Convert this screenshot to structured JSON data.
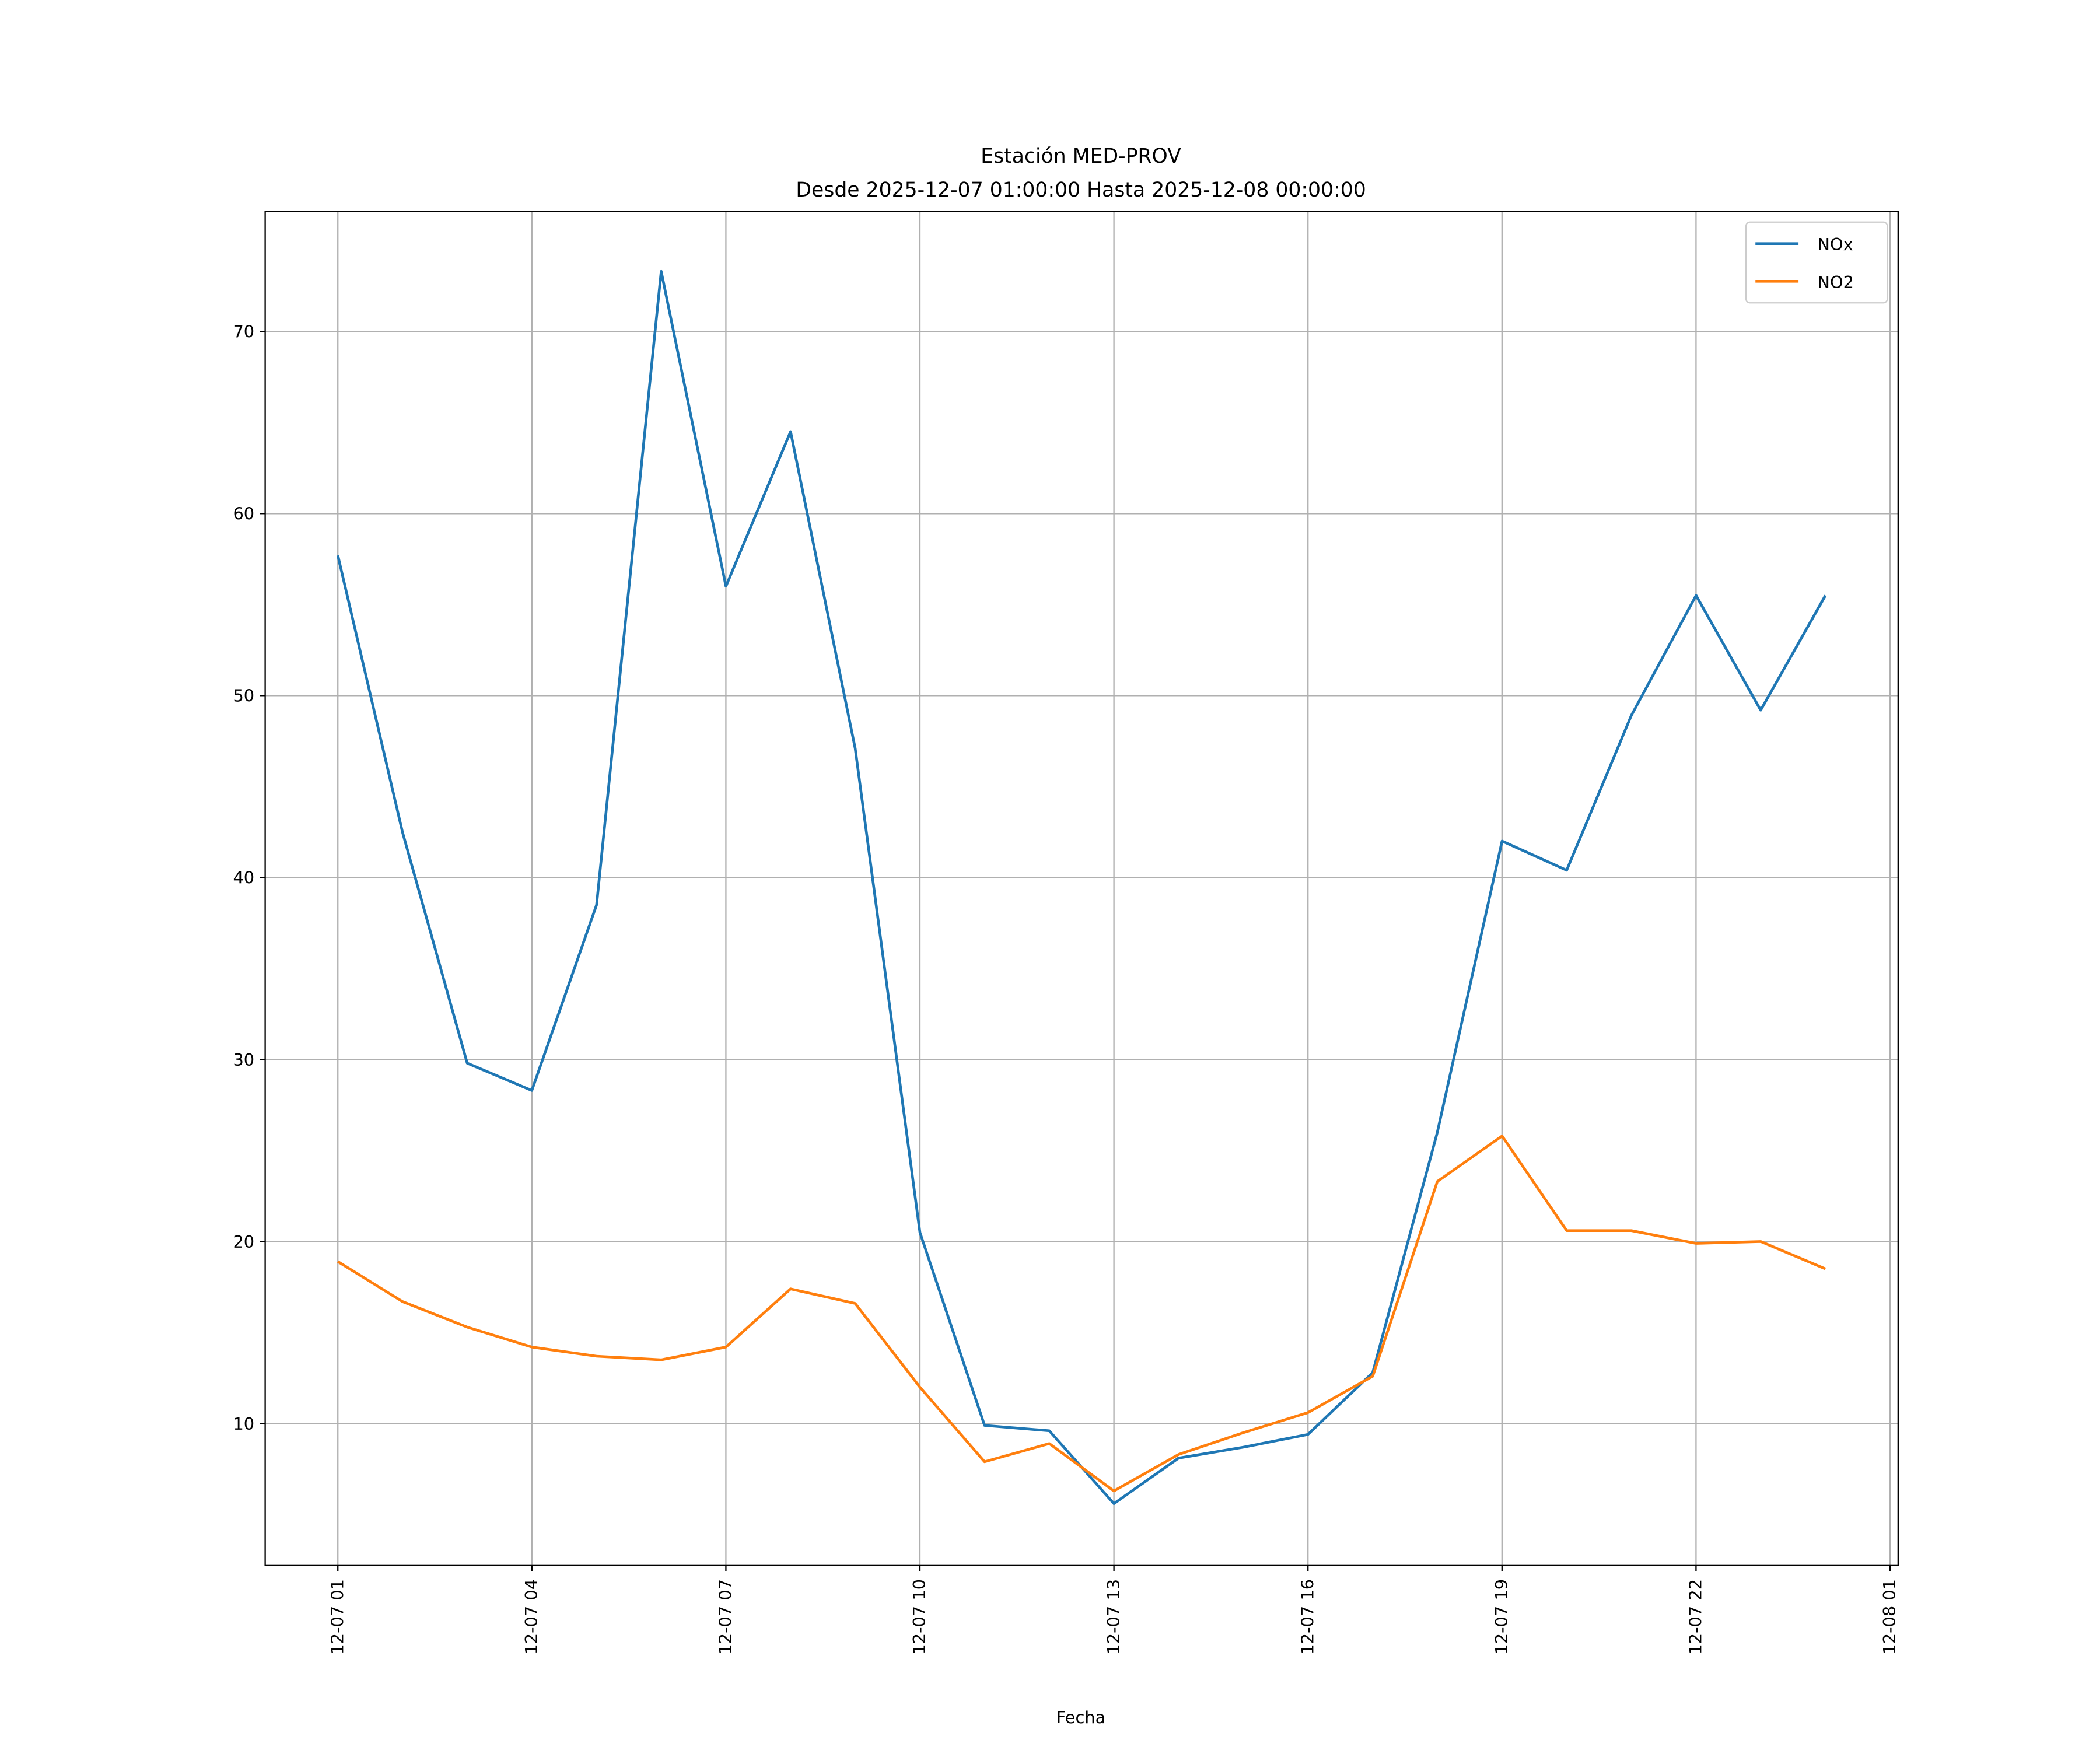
{
  "chart_data": {
    "type": "line",
    "title": "Estación MED-PROV",
    "subtitle": "Desde 2025-12-07 01:00:00 Hasta 2025-12-08 00:00:00",
    "xlabel": "Fecha",
    "ylabel": "",
    "x": [
      "2025-12-07 01:00",
      "2025-12-07 02:00",
      "2025-12-07 03:00",
      "2025-12-07 04:00",
      "2025-12-07 05:00",
      "2025-12-07 06:00",
      "2025-12-07 07:00",
      "2025-12-07 08:00",
      "2025-12-07 09:00",
      "2025-12-07 10:00",
      "2025-12-07 11:00",
      "2025-12-07 12:00",
      "2025-12-07 13:00",
      "2025-12-07 14:00",
      "2025-12-07 15:00",
      "2025-12-07 16:00",
      "2025-12-07 17:00",
      "2025-12-07 18:00",
      "2025-12-07 19:00",
      "2025-12-07 20:00",
      "2025-12-07 21:00",
      "2025-12-07 22:00",
      "2025-12-07 23:00",
      "2025-12-08 00:00"
    ],
    "series": [
      {
        "name": "NOx",
        "color": "#1f77b4",
        "values": [
          57.7,
          42.5,
          29.8,
          28.3,
          38.5,
          73.3,
          56.0,
          64.5,
          47.1,
          20.5,
          9.9,
          9.6,
          5.6,
          8.1,
          8.7,
          9.4,
          12.8,
          26.0,
          42.0,
          40.4,
          48.9,
          55.5,
          49.2,
          55.5
        ]
      },
      {
        "name": "NO2",
        "color": "#ff7f0e",
        "values": [
          18.9,
          16.7,
          15.3,
          14.2,
          13.7,
          13.5,
          14.2,
          17.4,
          16.6,
          12.0,
          7.9,
          8.9,
          6.3,
          8.3,
          9.5,
          10.6,
          12.6,
          23.3,
          25.8,
          20.6,
          20.6,
          19.9,
          20.0,
          18.5
        ]
      }
    ],
    "xticks": [
      "12-07 01",
      "12-07 04",
      "12-07 07",
      "12-07 10",
      "12-07 13",
      "12-07 16",
      "12-07 19",
      "12-07 22",
      "12-08 01"
    ],
    "yticks": [
      "10",
      "20",
      "30",
      "40",
      "50",
      "60",
      "70"
    ],
    "ylim": [
      2.2,
      76.6
    ],
    "xlim": [
      "2025-12-06 23:53",
      "2025-12-08 01:07"
    ],
    "grid": true,
    "legend": "top-right"
  }
}
